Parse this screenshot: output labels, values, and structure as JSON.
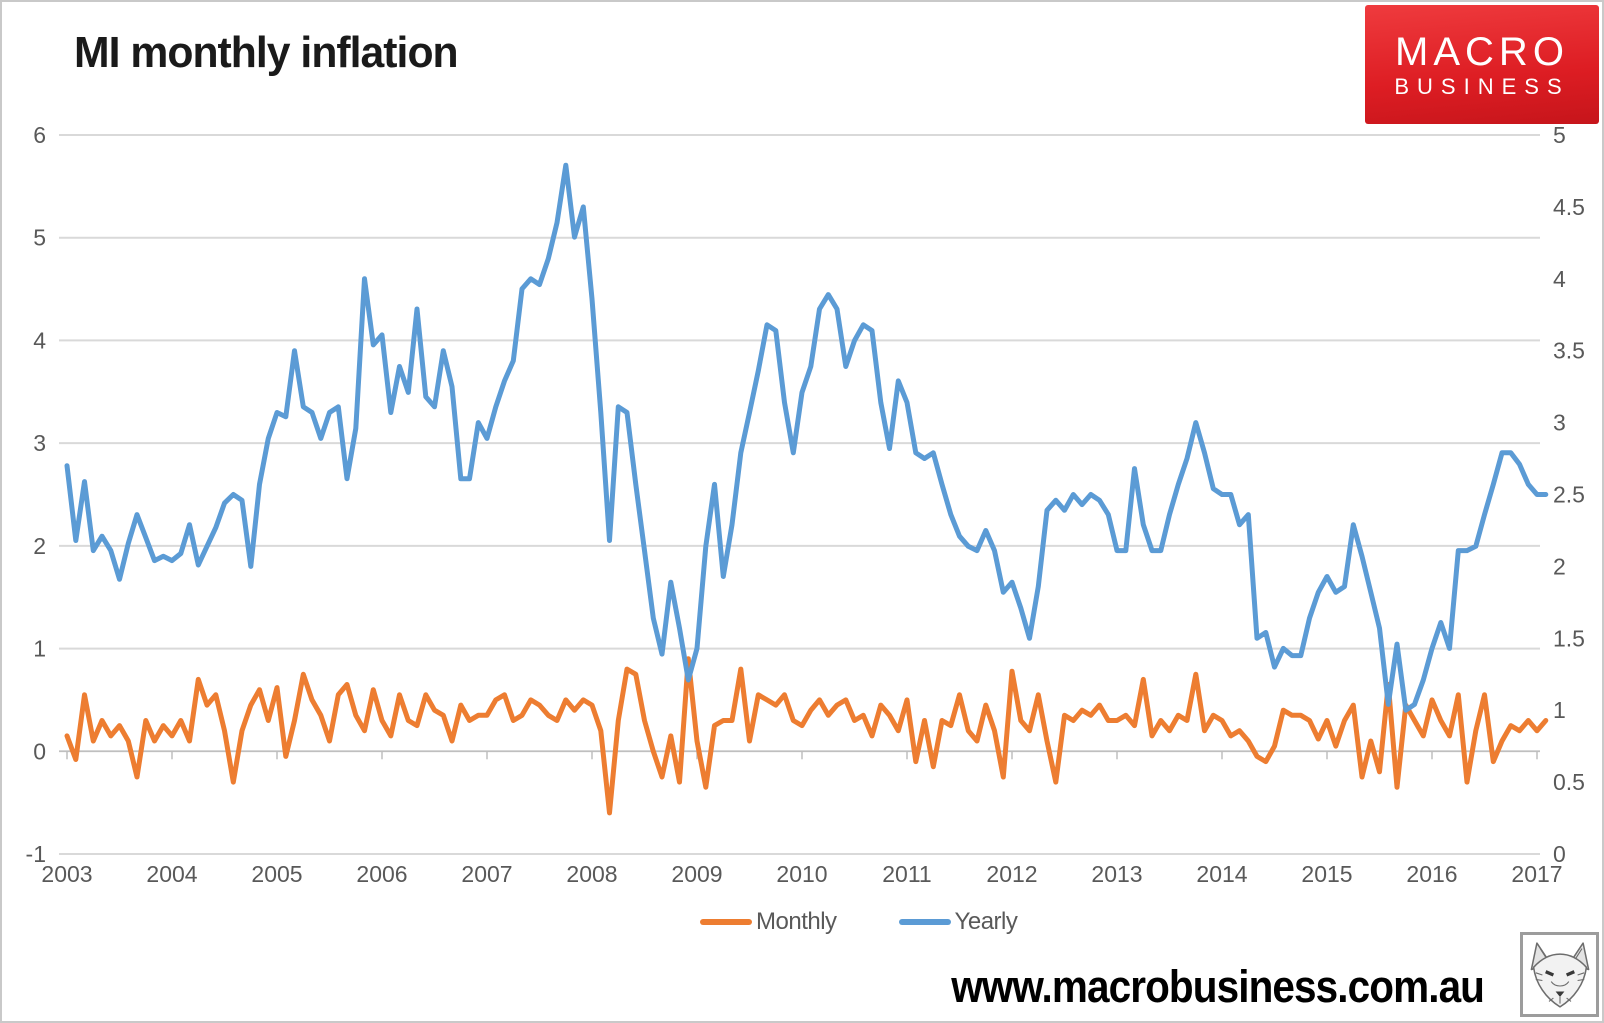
{
  "page": {
    "title": "MI monthly inflation",
    "site_url": "www.macrobusiness.com.au"
  },
  "logo": {
    "line1": "MACRO",
    "line2": "BUSINESS"
  },
  "colors": {
    "logo_red": "#DD1D23",
    "logo_red_top": "#EF3B3E",
    "monthly": "#ED7D31",
    "yearly": "#5B9BD5",
    "gridline": "#D9D9D9",
    "axis_line": "#BFBFBF",
    "tick_label": "#595959",
    "title": "#1A1A1A",
    "url": "#000000",
    "border": "#C9C9C9",
    "fox_border": "#9C9C9C"
  },
  "legend": {
    "items": [
      {
        "label": "Monthly",
        "color": "#ED7D31"
      },
      {
        "label": "Yearly",
        "color": "#5B9BD5"
      }
    ]
  },
  "chart_data": {
    "type": "line",
    "title": "MI monthly inflation",
    "x": {
      "start_year": 2003,
      "interval": "month",
      "points": 170,
      "tick_labels": [
        "2003",
        "2004",
        "2005",
        "2006",
        "2007",
        "2008",
        "2009",
        "2010",
        "2011",
        "2012",
        "2013",
        "2014",
        "2015",
        "2016",
        "2017"
      ]
    },
    "grid": true,
    "legend_position": "bottom",
    "axes": {
      "left": {
        "min": -1,
        "max": 6,
        "tick_values": [
          6,
          5,
          4,
          3,
          2,
          1,
          0,
          -1
        ],
        "tick_labels": [
          "6",
          "5",
          "4",
          "3",
          "2",
          "1",
          "0",
          "-1"
        ]
      },
      "right": {
        "min": 0,
        "max": 5,
        "tick_values": [
          5,
          4.5,
          4,
          3.5,
          3,
          2.5,
          2,
          1.5,
          1,
          0.5,
          0
        ],
        "tick_labels": [
          "5",
          "4.5",
          "4",
          "3.5",
          "3",
          "2.5",
          "2",
          "1.5",
          "1",
          "0.5",
          "0"
        ]
      }
    },
    "series": [
      {
        "name": "Monthly",
        "axis": "left",
        "color": "#ED7D31",
        "values": [
          0.15,
          -0.08,
          0.55,
          0.1,
          0.3,
          0.15,
          0.25,
          0.1,
          -0.25,
          0.3,
          0.1,
          0.25,
          0.15,
          0.3,
          0.1,
          0.7,
          0.45,
          0.55,
          0.2,
          -0.3,
          0.2,
          0.45,
          0.6,
          0.3,
          0.62,
          -0.05,
          0.3,
          0.75,
          0.5,
          0.35,
          0.1,
          0.55,
          0.65,
          0.35,
          0.2,
          0.6,
          0.3,
          0.15,
          0.55,
          0.3,
          0.25,
          0.55,
          0.4,
          0.35,
          0.1,
          0.45,
          0.3,
          0.35,
          0.35,
          0.5,
          0.55,
          0.3,
          0.35,
          0.5,
          0.45,
          0.35,
          0.3,
          0.5,
          0.4,
          0.5,
          0.45,
          0.2,
          -0.6,
          0.3,
          0.8,
          0.75,
          0.3,
          0.0,
          -0.25,
          0.15,
          -0.3,
          0.9,
          0.1,
          -0.35,
          0.25,
          0.3,
          0.3,
          0.8,
          0.1,
          0.55,
          0.5,
          0.45,
          0.55,
          0.3,
          0.25,
          0.4,
          0.5,
          0.35,
          0.45,
          0.5,
          0.3,
          0.35,
          0.15,
          0.45,
          0.35,
          0.2,
          0.5,
          -0.1,
          0.3,
          -0.15,
          0.3,
          0.25,
          0.55,
          0.2,
          0.1,
          0.45,
          0.2,
          -0.25,
          0.78,
          0.3,
          0.2,
          0.55,
          0.1,
          -0.3,
          0.35,
          0.3,
          0.4,
          0.35,
          0.45,
          0.3,
          0.3,
          0.35,
          0.25,
          0.7,
          0.15,
          0.3,
          0.2,
          0.35,
          0.3,
          0.75,
          0.2,
          0.35,
          0.3,
          0.15,
          0.2,
          0.1,
          -0.05,
          -0.1,
          0.05,
          0.4,
          0.35,
          0.35,
          0.3,
          0.12,
          0.3,
          0.05,
          0.3,
          0.45,
          -0.25,
          0.1,
          -0.2,
          0.65,
          -0.35,
          0.45,
          0.3,
          0.15,
          0.5,
          0.3,
          0.15,
          0.55,
          -0.3,
          0.2,
          0.55,
          -0.1,
          0.1,
          0.25,
          0.2,
          0.3,
          0.2,
          0.3
        ]
      },
      {
        "name": "Yearly",
        "axis": "right",
        "color": "#5B9BD5",
        "values": [
          2.7,
          2.18,
          2.59,
          2.11,
          2.21,
          2.11,
          1.91,
          2.16,
          2.36,
          2.2,
          2.04,
          2.07,
          2.04,
          2.09,
          2.29,
          2.01,
          2.14,
          2.27,
          2.44,
          2.5,
          2.46,
          2.0,
          2.57,
          2.89,
          3.07,
          3.04,
          3.5,
          3.11,
          3.07,
          2.89,
          3.07,
          3.11,
          2.61,
          2.96,
          4.0,
          3.54,
          3.61,
          3.07,
          3.39,
          3.21,
          3.79,
          3.18,
          3.11,
          3.5,
          3.25,
          2.61,
          2.61,
          3.0,
          2.89,
          3.11,
          3.29,
          3.43,
          3.93,
          4.0,
          3.96,
          4.14,
          4.39,
          4.79,
          4.29,
          4.5,
          3.86,
          3.07,
          2.18,
          3.11,
          3.07,
          2.57,
          2.11,
          1.64,
          1.39,
          1.89,
          1.57,
          1.21,
          1.43,
          2.14,
          2.57,
          1.93,
          2.29,
          2.79,
          3.07,
          3.36,
          3.68,
          3.64,
          3.14,
          2.79,
          3.21,
          3.39,
          3.79,
          3.89,
          3.79,
          3.39,
          3.57,
          3.68,
          3.64,
          3.14,
          2.82,
          3.29,
          3.14,
          2.79,
          2.75,
          2.79,
          2.57,
          2.36,
          2.21,
          2.14,
          2.11,
          2.25,
          2.11,
          1.82,
          1.89,
          1.71,
          1.5,
          1.86,
          2.39,
          2.46,
          2.39,
          2.5,
          2.43,
          2.5,
          2.46,
          2.36,
          2.11,
          2.11,
          2.68,
          2.29,
          2.11,
          2.11,
          2.36,
          2.57,
          2.75,
          3.0,
          2.79,
          2.54,
          2.5,
          2.5,
          2.29,
          2.36,
          1.5,
          1.54,
          1.3,
          1.43,
          1.38,
          1.38,
          1.64,
          1.82,
          1.93,
          1.82,
          1.86,
          2.29,
          2.07,
          1.82,
          1.57,
          1.04,
          1.46,
          1.0,
          1.04,
          1.21,
          1.43,
          1.61,
          1.43,
          2.11,
          2.11,
          2.14,
          2.36,
          2.57,
          2.79,
          2.79,
          2.71,
          2.57,
          2.5,
          2.5
        ]
      }
    ]
  }
}
